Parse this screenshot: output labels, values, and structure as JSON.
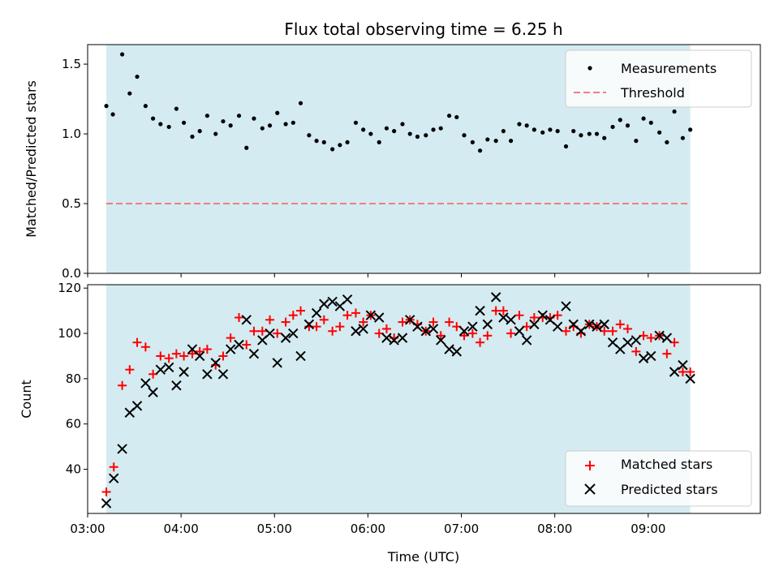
{
  "chart_data": [
    {
      "type": "scatter",
      "title": "Flux total observing time = 6.25 h",
      "xlabel": "",
      "ylabel": "Matched/Predicted stars",
      "ylim": [
        0,
        1.64
      ],
      "yticks": [
        0.0,
        0.5,
        1.0,
        1.5
      ],
      "ytick_labels": [
        "0.0",
        "0.5",
        "1.0",
        "1.5"
      ],
      "xlim": [
        3.0,
        10.2
      ],
      "shaded_region": {
        "x_start": 3.2,
        "x_end": 9.45,
        "color": "#d4ebf1"
      },
      "legend_position": "top-right",
      "series": [
        {
          "name": "Measurements",
          "marker": "dot",
          "color": "#000000",
          "x": [
            3.2,
            3.27,
            3.37,
            3.45,
            3.53,
            3.62,
            3.7,
            3.78,
            3.87,
            3.95,
            4.03,
            4.12,
            4.2,
            4.28,
            4.37,
            4.45,
            4.53,
            4.62,
            4.7,
            4.78,
            4.87,
            4.95,
            5.03,
            5.12,
            5.2,
            5.28,
            5.37,
            5.45,
            5.53,
            5.62,
            5.7,
            5.78,
            5.87,
            5.95,
            6.03,
            6.12,
            6.2,
            6.28,
            6.37,
            6.45,
            6.53,
            6.62,
            6.7,
            6.78,
            6.87,
            6.95,
            7.03,
            7.12,
            7.2,
            7.28,
            7.37,
            7.45,
            7.53,
            7.62,
            7.7,
            7.78,
            7.87,
            7.95,
            8.03,
            8.12,
            8.2,
            8.28,
            8.37,
            8.45,
            8.53,
            8.62,
            8.7,
            8.78,
            8.87,
            8.95,
            9.03,
            9.12,
            9.2,
            9.28,
            9.37,
            9.45
          ],
          "y": [
            1.2,
            1.14,
            1.57,
            1.29,
            1.41,
            1.2,
            1.11,
            1.07,
            1.05,
            1.18,
            1.08,
            0.98,
            1.02,
            1.13,
            1.0,
            1.09,
            1.06,
            1.13,
            0.9,
            1.11,
            1.04,
            1.06,
            1.15,
            1.07,
            1.08,
            1.22,
            0.99,
            0.95,
            0.94,
            0.89,
            0.92,
            0.94,
            1.08,
            1.03,
            1.0,
            0.94,
            1.04,
            1.02,
            1.07,
            1.0,
            0.98,
            0.99,
            1.03,
            1.04,
            1.13,
            1.12,
            0.99,
            0.94,
            0.88,
            0.96,
            0.95,
            1.02,
            0.95,
            1.07,
            1.06,
            1.03,
            1.01,
            1.03,
            1.02,
            0.91,
            1.02,
            0.99,
            1.0,
            1.0,
            0.97,
            1.05,
            1.1,
            1.06,
            0.95,
            1.11,
            1.08,
            1.01,
            0.94,
            1.16,
            0.97,
            1.03
          ]
        },
        {
          "name": "Threshold",
          "marker": "dashed-line",
          "color": "#f07e7e",
          "x": [
            3.2,
            9.45
          ],
          "y": [
            0.5,
            0.5
          ]
        }
      ]
    },
    {
      "type": "scatter",
      "title": "",
      "xlabel": "Time (UTC)",
      "ylabel": "Count",
      "ylim": [
        20.5,
        121.5
      ],
      "yticks": [
        40,
        60,
        80,
        100,
        120
      ],
      "ytick_labels": [
        "40",
        "60",
        "80",
        "100",
        "120"
      ],
      "xlim": [
        3.0,
        10.2
      ],
      "xticks": [
        3,
        4,
        5,
        6,
        7,
        8,
        9
      ],
      "xtick_labels": [
        "03:00",
        "04:00",
        "05:00",
        "06:00",
        "07:00",
        "08:00",
        "09:00"
      ],
      "shaded_region": {
        "x_start": 3.2,
        "x_end": 9.45,
        "color": "#d4ebf1"
      },
      "legend_position": "bottom-right",
      "series": [
        {
          "name": "Matched stars",
          "marker": "plus",
          "color": "#ff0000",
          "x": [
            3.2,
            3.28,
            3.37,
            3.45,
            3.53,
            3.62,
            3.7,
            3.78,
            3.87,
            3.95,
            4.03,
            4.12,
            4.2,
            4.28,
            4.37,
            4.45,
            4.53,
            4.62,
            4.7,
            4.78,
            4.87,
            4.95,
            5.03,
            5.12,
            5.2,
            5.28,
            5.37,
            5.45,
            5.53,
            5.62,
            5.7,
            5.78,
            5.87,
            5.95,
            6.03,
            6.12,
            6.2,
            6.28,
            6.37,
            6.45,
            6.53,
            6.62,
            6.7,
            6.78,
            6.87,
            6.95,
            7.03,
            7.12,
            7.2,
            7.28,
            7.37,
            7.45,
            7.53,
            7.62,
            7.7,
            7.78,
            7.87,
            7.95,
            8.03,
            8.12,
            8.2,
            8.28,
            8.37,
            8.45,
            8.53,
            8.62,
            8.7,
            8.78,
            8.87,
            8.95,
            9.03,
            9.12,
            9.2,
            9.28,
            9.37,
            9.45
          ],
          "y": [
            30,
            41,
            77,
            84,
            96,
            94,
            82,
            90,
            89,
            91,
            90,
            91,
            92,
            93,
            86,
            90,
            98,
            107,
            95,
            101,
            101,
            106,
            100,
            105,
            108,
            110,
            103,
            103,
            106,
            101,
            103,
            108,
            109,
            105,
            108,
            100,
            102,
            98,
            105,
            106,
            104,
            101,
            105,
            99,
            105,
            103,
            99,
            100,
            96,
            99,
            110,
            110,
            100,
            108,
            103,
            107,
            107,
            107,
            108,
            101,
            103,
            100,
            104,
            103,
            101,
            101,
            104,
            102,
            92,
            99,
            98,
            99,
            91,
            96,
            83,
            83
          ]
        },
        {
          "name": "Predicted stars",
          "marker": "x",
          "color": "#000000",
          "x": [
            3.2,
            3.28,
            3.37,
            3.45,
            3.53,
            3.62,
            3.7,
            3.78,
            3.87,
            3.95,
            4.03,
            4.12,
            4.2,
            4.28,
            4.37,
            4.45,
            4.53,
            4.62,
            4.7,
            4.78,
            4.87,
            4.95,
            5.03,
            5.12,
            5.2,
            5.28,
            5.37,
            5.45,
            5.53,
            5.62,
            5.7,
            5.78,
            5.87,
            5.95,
            6.03,
            6.12,
            6.2,
            6.28,
            6.37,
            6.45,
            6.53,
            6.62,
            6.7,
            6.78,
            6.87,
            6.95,
            7.03,
            7.12,
            7.2,
            7.28,
            7.37,
            7.45,
            7.53,
            7.62,
            7.7,
            7.78,
            7.87,
            7.95,
            8.03,
            8.12,
            8.2,
            8.28,
            8.37,
            8.45,
            8.53,
            8.62,
            8.7,
            8.78,
            8.87,
            8.95,
            9.03,
            9.12,
            9.2,
            9.28,
            9.37,
            9.45
          ],
          "y": [
            25,
            36,
            49,
            65,
            68,
            78,
            74,
            84,
            85,
            77,
            83,
            93,
            90,
            82,
            87,
            82,
            93,
            95,
            106,
            91,
            97,
            100,
            87,
            98,
            100,
            90,
            104,
            109,
            113,
            114,
            112,
            115,
            101,
            102,
            108,
            107,
            98,
            97,
            98,
            106,
            103,
            101,
            102,
            97,
            93,
            92,
            101,
            103,
            110,
            104,
            116,
            107,
            106,
            101,
            97,
            104,
            108,
            106,
            103,
            112,
            104,
            101,
            104,
            103,
            104,
            96,
            93,
            96,
            97,
            89,
            90,
            99,
            98,
            83,
            86,
            80
          ]
        }
      ]
    }
  ]
}
